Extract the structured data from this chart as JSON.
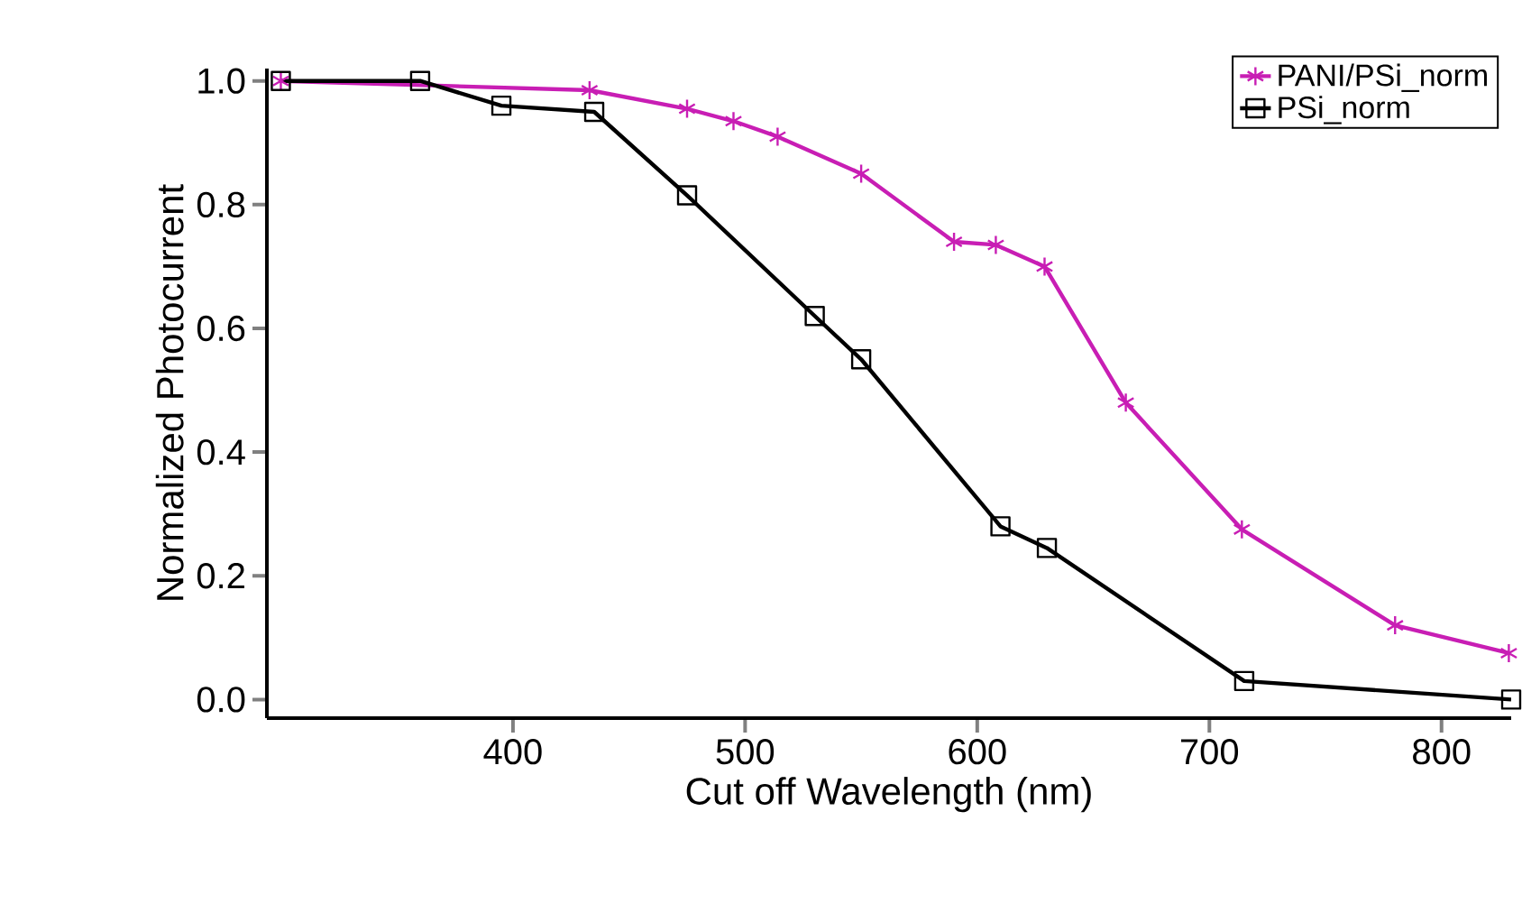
{
  "chart_data": {
    "type": "line",
    "xlabel": "Cut off Wavelength (nm)",
    "ylabel": "Normalized Photocurrent",
    "xlim": [
      294,
      830
    ],
    "ylim": [
      -0.03,
      1.02
    ],
    "xticks": [
      400,
      500,
      600,
      700,
      800
    ],
    "yticks": [
      {
        "value": 0,
        "label": "0.0"
      },
      {
        "value": 0.2,
        "label": "0.2"
      },
      {
        "value": 0.4,
        "label": "0.4"
      },
      {
        "value": 0.6,
        "label": "0.6"
      },
      {
        "value": 0.8,
        "label": "0.8"
      },
      {
        "value": 1,
        "label": "1.0"
      }
    ],
    "legend": "top right",
    "grid": false,
    "line_style": "solid",
    "series": [
      {
        "name": "PANI/PSi_norm",
        "color": "#c81eb4",
        "marker": "cross",
        "x": [
          300,
          433,
          475,
          495,
          514,
          550,
          590,
          608,
          629,
          664,
          714,
          780,
          829
        ],
        "values": [
          1.0,
          0.985,
          0.955,
          0.935,
          0.91,
          0.85,
          0.74,
          0.735,
          0.7,
          0.48,
          0.275,
          0.12,
          0.075
        ]
      },
      {
        "name": "PSi_norm",
        "color": "#000000",
        "marker": "square",
        "x": [
          300,
          360,
          395,
          435,
          475,
          530,
          550,
          610,
          630,
          715,
          830
        ],
        "values": [
          1.0,
          1.0,
          0.96,
          0.95,
          0.815,
          0.62,
          0.55,
          0.28,
          0.245,
          0.03,
          0.0
        ]
      }
    ]
  }
}
